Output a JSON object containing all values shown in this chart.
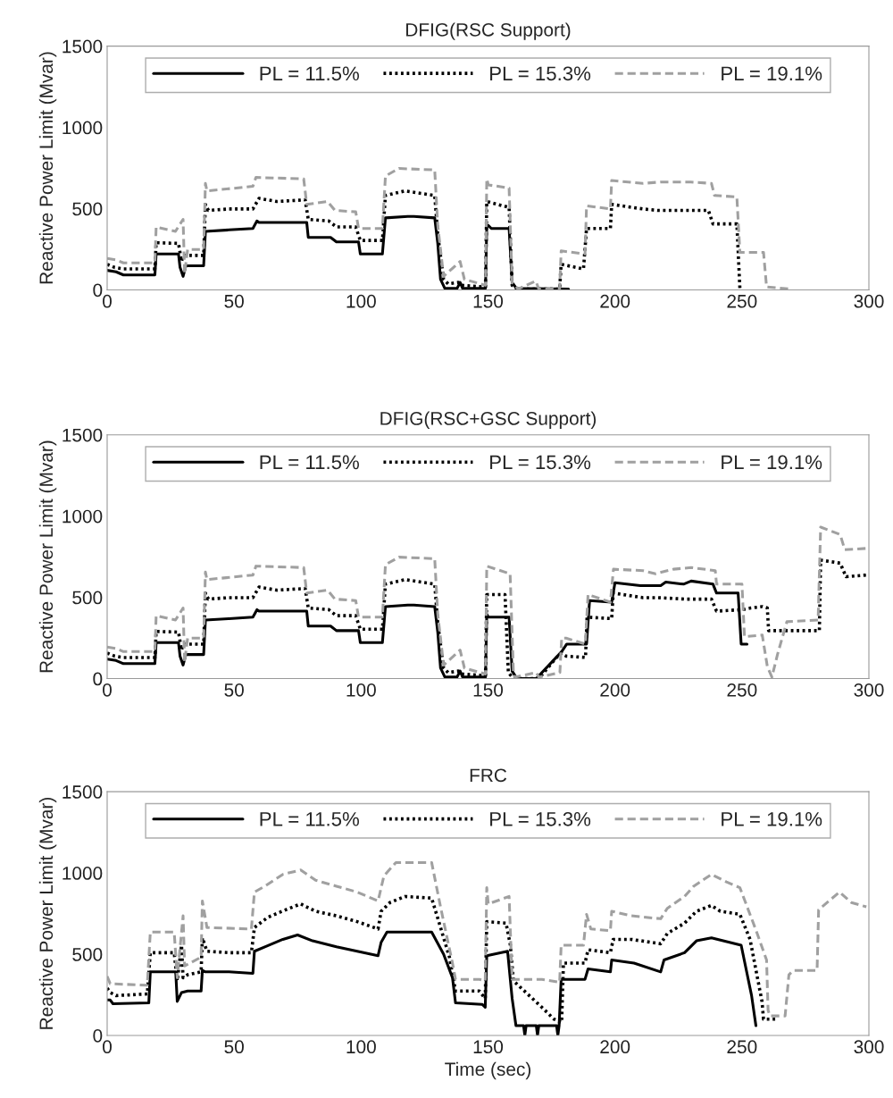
{
  "chart_data": [
    {
      "type": "line",
      "title": "DFIG(RSC Support)",
      "ylabel": "Reactive Power Limit (Mvar)",
      "xlim": [
        0,
        300
      ],
      "ylim": [
        0,
        1500
      ],
      "xticks": [
        0,
        50,
        100,
        150,
        200,
        250,
        300
      ],
      "yticks": [
        0,
        500,
        1000,
        1500
      ],
      "legend": "top",
      "grid": false,
      "marker": "none",
      "tick_labels": "xy",
      "series": [
        {
          "name": "PL = 11.5%",
          "color": "#000000",
          "line_style": "solid",
          "x": [
            0,
            3.5,
            6.4,
            18.8,
            19.3,
            28.1,
            28.7,
            29.9,
            31,
            38,
            38.7,
            48,
            57.4,
            59,
            59.8,
            78.6,
            79.2,
            88,
            90.3,
            99,
            99.7,
            108.4,
            109.6,
            118.4,
            120.8,
            129,
            130.2,
            131.3,
            133,
            137.8,
            139,
            140,
            149,
            149.5,
            150.1,
            151.3,
            158.3,
            159.5,
            161.2,
            181.7
          ],
          "values": [
            120,
            111,
            92,
            92,
            221,
            221,
            138,
            83,
            148,
            148,
            360,
            369,
            378,
            424,
            415,
            415,
            323,
            323,
            295,
            295,
            221,
            221,
            443,
            452,
            452,
            443,
            286,
            65,
            9,
            9,
            46,
            9,
            9,
            397,
            397,
            378,
            378,
            46,
            9,
            5
          ]
        },
        {
          "name": "PL = 15.3%",
          "color": "#000000",
          "line_style": "dotted",
          "x": [
            0,
            3,
            6.4,
            18.8,
            19.3,
            28.1,
            29.3,
            29.9,
            31.7,
            38,
            38.7,
            39.9,
            48,
            57.4,
            59.8,
            66.8,
            78,
            79.2,
            87.3,
            90.3,
            97.9,
            99.7,
            108.4,
            109.6,
            117.3,
            129,
            130.2,
            132.5,
            134.3,
            138.3,
            139.5,
            149,
            149.5,
            158.3,
            159.5,
            161.2,
            178.2,
            178.8,
            187.6,
            188.8,
            198.2,
            198.7,
            211,
            216.9,
            236.8,
            238.6,
            248,
            249.2
          ],
          "values": [
            157,
            138,
            129,
            129,
            290,
            286,
            175,
            212,
            212,
            212,
            526,
            489,
            498,
            498,
            563,
            544,
            554,
            434,
            424,
            387,
            387,
            304,
            304,
            581,
            609,
            581,
            341,
            65,
            37,
            46,
            28,
            18,
            544,
            507,
            28,
            5,
            5,
            157,
            129,
            378,
            378,
            526,
            498,
            489,
            489,
            406,
            406,
            9
          ]
        },
        {
          "name": "PL = 19.1%",
          "color": "#a0a0a0",
          "line_style": "dashed",
          "x": [
            0,
            3.5,
            6.4,
            18.8,
            19.3,
            26.9,
            29.9,
            30.5,
            31.7,
            38,
            38.7,
            39.3,
            57.4,
            58.6,
            77.4,
            78.6,
            86.8,
            89.7,
            97.9,
            99,
            108.4,
            109.6,
            114.9,
            129,
            130.2,
            132.5,
            139,
            140.7,
            149,
            149.5,
            150.1,
            158.3,
            159.5,
            161.8,
            168.8,
            170,
            178.2,
            178.8,
            188.2,
            188.8,
            198.2,
            198.7,
            211,
            218,
            229.8,
            238,
            239.2,
            248,
            249.2,
            258.5,
            259.7,
            269.7
          ],
          "values": [
            194,
            185,
            166,
            166,
            387,
            360,
            434,
            101,
            249,
            249,
            655,
            609,
            637,
            692,
            683,
            526,
            544,
            489,
            480,
            378,
            378,
            701,
            747,
            738,
            397,
            83,
            175,
            65,
            28,
            683,
            646,
            627,
            46,
            5,
            55,
            5,
            5,
            240,
            221,
            517,
            498,
            673,
            655,
            664,
            664,
            655,
            581,
            572,
            231,
            231,
            18,
            5
          ]
        }
      ]
    },
    {
      "type": "line",
      "title": "DFIG(RSC+GSC Support)",
      "ylabel": "Reactive Power Limit (Mvar)",
      "xlim": [
        0,
        300
      ],
      "ylim": [
        0,
        1500
      ],
      "xticks": [
        0,
        50,
        100,
        150,
        200,
        250,
        300
      ],
      "yticks": [
        0,
        500,
        1000,
        1500
      ],
      "legend": "top",
      "grid": false,
      "marker": "none",
      "tick_labels": "xy",
      "series": [
        {
          "name": "PL = 11.5%",
          "color": "#000000",
          "line_style": "solid",
          "x": [
            0,
            3.5,
            6.4,
            18.8,
            19.3,
            28.1,
            28.7,
            29.9,
            31,
            38,
            38.7,
            48,
            57.4,
            59,
            59.8,
            78.6,
            79.2,
            88,
            90.3,
            99,
            99.7,
            108.4,
            109.6,
            118.4,
            120.8,
            129,
            130.2,
            131.3,
            133,
            137.8,
            139,
            140,
            149,
            149.5,
            150.1,
            158.3,
            159.5,
            161,
            163,
            169,
            179,
            181,
            188.8,
            190,
            198.7,
            200,
            210,
            218,
            220,
            227,
            230,
            238.6,
            240,
            248.5,
            249.7,
            252
          ],
          "values": [
            120,
            111,
            92,
            92,
            221,
            221,
            138,
            83,
            148,
            148,
            360,
            369,
            378,
            424,
            415,
            415,
            323,
            323,
            295,
            295,
            221,
            221,
            443,
            452,
            452,
            443,
            286,
            65,
            9,
            9,
            46,
            9,
            9,
            397,
            378,
            378,
            46,
            9,
            0,
            0,
            166,
            212,
            212,
            480,
            470,
            590,
            572,
            572,
            594,
            581,
            600,
            581,
            526,
            526,
            212,
            212
          ]
        },
        {
          "name": "PL = 15.3%",
          "color": "#000000",
          "line_style": "dotted",
          "x": [
            0,
            3,
            6.4,
            18.8,
            19.3,
            28.1,
            29.3,
            29.9,
            31.7,
            38,
            38.7,
            39.9,
            48,
            57.4,
            59.8,
            66.8,
            78,
            79.2,
            87.3,
            90.3,
            97.9,
            99.7,
            108.4,
            109.6,
            117.3,
            129,
            130.2,
            132.5,
            134.3,
            138.3,
            139.5,
            149,
            149.5,
            156.7,
            158,
            160,
            170,
            177,
            179,
            180.8,
            188.4,
            189,
            198.7,
            199.3,
            211,
            217,
            227.5,
            238,
            240,
            250,
            253.5,
            258,
            260,
            260.5,
            280.5,
            281,
            288.7,
            291,
            299
          ],
          "values": [
            157,
            138,
            129,
            129,
            290,
            286,
            175,
            212,
            212,
            212,
            526,
            489,
            498,
            498,
            563,
            544,
            554,
            434,
            424,
            387,
            387,
            304,
            304,
            581,
            609,
            581,
            341,
            65,
            37,
            46,
            28,
            18,
            517,
            517,
            37,
            0,
            0,
            130,
            157,
            138,
            130,
            378,
            369,
            526,
            498,
            498,
            489,
            489,
            415,
            424,
            434,
            443,
            434,
            295,
            295,
            729,
            710,
            627,
            637
          ]
        },
        {
          "name": "PL = 19.1%",
          "color": "#a0a0a0",
          "line_style": "dashed",
          "x": [
            0,
            3.5,
            6.4,
            18.8,
            19.3,
            26.9,
            29.9,
            30.5,
            31.7,
            38,
            38.7,
            39.3,
            57.4,
            58.6,
            77.4,
            78.6,
            86.8,
            89.7,
            97.9,
            99,
            108.4,
            109.6,
            114.9,
            129,
            130.2,
            132.5,
            139,
            140.7,
            149,
            149.5,
            158.7,
            160,
            160.5,
            169,
            170,
            178.3,
            179,
            180.7,
            188.3,
            189.4,
            198.2,
            199.4,
            211,
            216,
            223,
            230,
            239.5,
            240,
            250,
            251,
            258,
            260,
            261.8,
            264,
            267.7,
            280,
            281,
            288.7,
            290.5,
            300
          ],
          "values": [
            194,
            185,
            166,
            166,
            387,
            360,
            434,
            101,
            249,
            249,
            655,
            609,
            637,
            692,
            683,
            526,
            544,
            489,
            480,
            378,
            378,
            701,
            747,
            738,
            397,
            83,
            175,
            65,
            28,
            692,
            645,
            37,
            9,
            37,
            9,
            37,
            249,
            249,
            212,
            517,
            470,
            673,
            664,
            645,
            673,
            683,
            664,
            581,
            581,
            258,
            268,
            74,
            9,
            148,
            350,
            360,
            932,
            886,
            793,
            802
          ]
        }
      ]
    },
    {
      "type": "line",
      "title": "FRC",
      "xlabel": "Time (sec)",
      "ylabel": "Reactive Power Limit (Mvar)",
      "xlim": [
        0,
        300
      ],
      "ylim": [
        0,
        1500
      ],
      "xticks": [
        0,
        50,
        100,
        150,
        200,
        250,
        300
      ],
      "yticks": [
        0,
        500,
        1000,
        1500
      ],
      "legend": "top",
      "grid": false,
      "marker": "none",
      "series": [
        {
          "name": "PL = 11.5%",
          "color": "#000000",
          "line_style": "solid",
          "x": [
            0,
            1.2,
            2.3,
            16.4,
            17,
            27,
            27.6,
            29.3,
            31.7,
            37,
            37.5,
            38.7,
            48,
            57.4,
            58,
            62.1,
            69.2,
            75,
            80.9,
            90.3,
            98.5,
            106.7,
            107.9,
            110.2,
            127.8,
            132.5,
            136,
            137.2,
            147.7,
            148.9,
            149.5,
            157.7,
            159.5,
            161,
            164,
            164.5,
            165,
            169,
            169.5,
            170,
            177,
            177.5,
            178,
            178.8,
            188.2,
            189.4,
            198.2,
            198.7,
            207.5,
            218,
            219.3,
            227.4,
            232.1,
            238,
            249.7,
            253.8,
            255.5
          ],
          "values": [
            218,
            218,
            195,
            200,
            391,
            391,
            209,
            264,
            273,
            273,
            400,
            391,
            391,
            382,
            518,
            545,
            591,
            618,
            582,
            545,
            518,
            491,
            573,
            636,
            636,
            500,
            355,
            200,
            191,
            173,
            491,
            518,
            227,
            60,
            60,
            0,
            60,
            60,
            0,
            60,
            60,
            0,
            60,
            345,
            345,
            409,
            391,
            464,
            445,
            391,
            464,
            509,
            582,
            600,
            555,
            245,
            60
          ]
        },
        {
          "name": "PL = 15.3%",
          "color": "#000000",
          "line_style": "dotted",
          "x": [
            0,
            1.2,
            3.5,
            15.8,
            17,
            26.4,
            27.6,
            29.3,
            29.9,
            31.7,
            37,
            37.5,
            39.3,
            48,
            56.8,
            58,
            63.3,
            70.3,
            76.2,
            82.1,
            90.3,
            98.5,
            106.7,
            107.9,
            111.4,
            117.3,
            127.8,
            131.3,
            134.8,
            137.2,
            146.6,
            148.9,
            149.5,
            157.1,
            158.8,
            160,
            171.2,
            176,
            179,
            179.7,
            188.2,
            189.4,
            198.2,
            199.3,
            206.4,
            218,
            220.6,
            227.4,
            232.1,
            238,
            241.5,
            249.2,
            253.2,
            257.9,
            258.5,
            264
          ],
          "values": [
            291,
            264,
            245,
            255,
            509,
            509,
            336,
            555,
            355,
            373,
            391,
            600,
            518,
            509,
            509,
            664,
            727,
            773,
            809,
            764,
            736,
            700,
            655,
            764,
            818,
            855,
            845,
            664,
            482,
            273,
            273,
            227,
            700,
            691,
            555,
            336,
            173,
            100,
            80,
            445,
            445,
            527,
            509,
            591,
            591,
            564,
            627,
            691,
            764,
            800,
            764,
            745,
            591,
            209,
            100,
            100
          ]
        },
        {
          "name": "PL = 19.1%",
          "color": "#a0a0a0",
          "line_style": "dashed",
          "x": [
            0,
            1.2,
            15.8,
            17,
            26.4,
            27.6,
            29.9,
            30.5,
            37,
            37.5,
            39.3,
            56.8,
            58,
            62.1,
            69.2,
            76.2,
            82.1,
            90.3,
            98.5,
            106.7,
            109,
            113.7,
            127.8,
            131.3,
            136,
            137.2,
            146.6,
            148.9,
            149.5,
            150.1,
            158.3,
            159.5,
            171.2,
            178.2,
            178.8,
            187.6,
            188.8,
            190.5,
            198.2,
            198.7,
            206.4,
            218,
            220.6,
            227.4,
            231,
            238,
            243.9,
            249.2,
            255.6,
            259.7,
            260.3,
            261,
            267,
            268.5,
            270.2,
            279.6,
            280.2,
            288.4,
            293.1,
            299
          ],
          "values": [
            364,
            318,
            309,
            636,
            636,
            355,
            736,
            427,
            482,
            827,
            664,
            655,
            882,
            918,
            991,
            1018,
            955,
            918,
            882,
            827,
            982,
            1064,
            1064,
            791,
            445,
            345,
            345,
            336,
            909,
            809,
            855,
            345,
            345,
            327,
            555,
            555,
            745,
            655,
            645,
            764,
            736,
            718,
            782,
            855,
            918,
            991,
            945,
            909,
            645,
            464,
            155,
            120,
            120,
            373,
            400,
            400,
            773,
            882,
            818,
            791
          ]
        }
      ]
    }
  ]
}
